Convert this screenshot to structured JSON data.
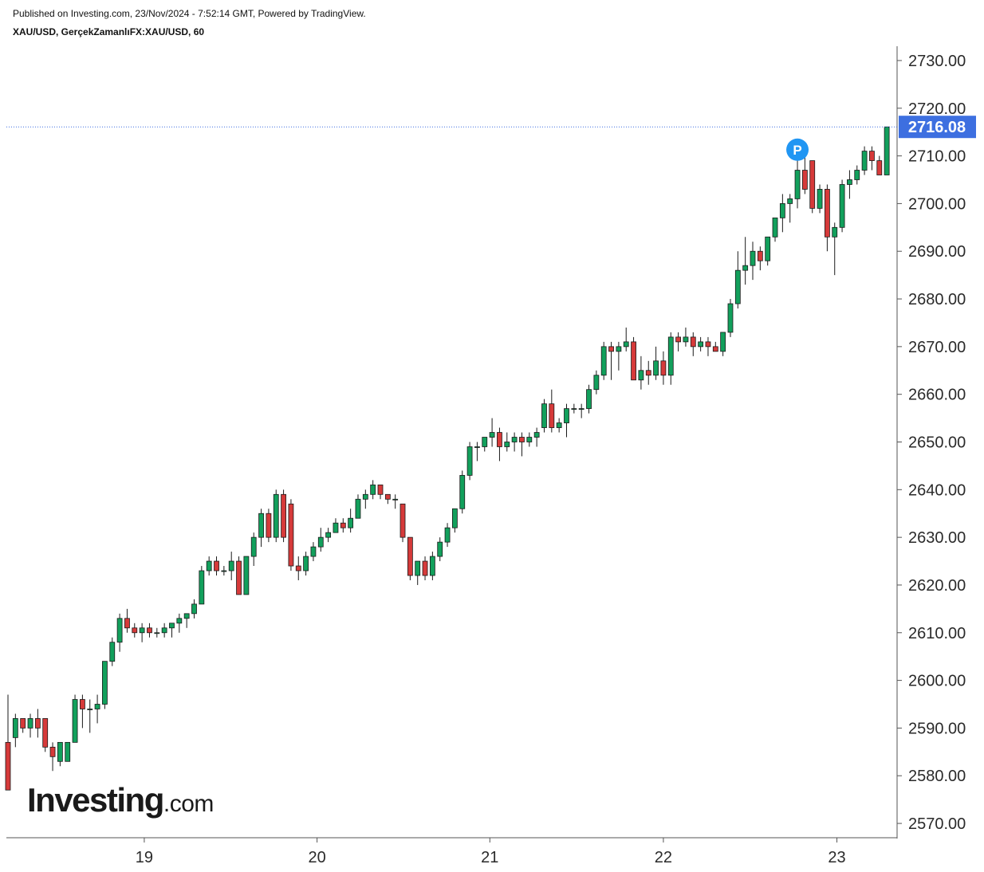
{
  "header": {
    "published": "Published on Investing.com, 23/Nov/2024 - 7:52:14 GMT, Powered by TradingView.",
    "symbol": "XAU/USD, GerçekZamanlıFX:XAU/USD, 60"
  },
  "logo": {
    "main": "Investing",
    "suffix": ".com"
  },
  "marker": {
    "label": "P",
    "color": "#2196f3"
  },
  "colors": {
    "up": "#12a05c",
    "down": "#d63a3a",
    "last_price": "#3d6fe0",
    "axis": "#555555"
  },
  "chart_data": {
    "type": "candlestick",
    "title": "",
    "xlabel": "",
    "ylabel": "",
    "ylim": [
      2567,
      2733
    ],
    "yticks": [
      "2570.00",
      "2580.00",
      "2590.00",
      "2600.00",
      "2610.00",
      "2620.00",
      "2630.00",
      "2640.00",
      "2650.00",
      "2660.00",
      "2670.00",
      "2680.00",
      "2690.00",
      "2700.00",
      "2710.00",
      "2720.00",
      "2730.00"
    ],
    "xtick_labels": [
      {
        "label": "19",
        "index": 18.3
      },
      {
        "label": "20",
        "index": 41.5
      },
      {
        "label": "21",
        "index": 64.7
      },
      {
        "label": "22",
        "index": 88
      },
      {
        "label": "23",
        "index": 111.3
      }
    ],
    "last_price": "2716.08",
    "candles": [
      [
        2587,
        2597,
        2577,
        2577
      ],
      [
        2588,
        2593,
        2586,
        2592
      ],
      [
        2592,
        2592,
        2589,
        2590
      ],
      [
        2590,
        2593,
        2588,
        2592
      ],
      [
        2592,
        2594,
        2588,
        2590
      ],
      [
        2592,
        2592,
        2585,
        2586
      ],
      [
        2586,
        2587,
        2581,
        2584
      ],
      [
        2583,
        2587,
        2582,
        2587
      ],
      [
        2583,
        2587,
        2583,
        2587
      ],
      [
        2587,
        2597,
        2587,
        2596
      ],
      [
        2596,
        2597,
        2590,
        2594
      ],
      [
        2594,
        2596,
        2589,
        2594
      ],
      [
        2594,
        2597,
        2591,
        2595
      ],
      [
        2595,
        2604,
        2594,
        2604
      ],
      [
        2604,
        2609,
        2603,
        2608
      ],
      [
        2608,
        2614,
        2606,
        2613
      ],
      [
        2613,
        2615,
        2610,
        2611
      ],
      [
        2611,
        2612,
        2609,
        2610
      ],
      [
        2610,
        2612,
        2608,
        2611
      ],
      [
        2611,
        2612,
        2609,
        2610
      ],
      [
        2610,
        2611,
        2609,
        2610
      ],
      [
        2610,
        2612,
        2609,
        2611
      ],
      [
        2611,
        2612,
        2609,
        2612
      ],
      [
        2612,
        2614,
        2610,
        2613
      ],
      [
        2613,
        2614,
        2611,
        2614
      ],
      [
        2614,
        2617,
        2613,
        2616
      ],
      [
        2616,
        2624,
        2616,
        2623
      ],
      [
        2623,
        2626,
        2622,
        2625
      ],
      [
        2625,
        2626,
        2622,
        2623
      ],
      [
        2623,
        2624,
        2622,
        2623
      ],
      [
        2623,
        2627,
        2621,
        2625
      ],
      [
        2625,
        2626,
        2618,
        2618
      ],
      [
        2618,
        2626,
        2618,
        2626
      ],
      [
        2626,
        2631,
        2624,
        2630
      ],
      [
        2630,
        2636,
        2628,
        2635
      ],
      [
        2635,
        2636,
        2629,
        2630
      ],
      [
        2630,
        2640,
        2629,
        2639
      ],
      [
        2639,
        2640,
        2629,
        2630
      ],
      [
        2637,
        2638,
        2623,
        2624
      ],
      [
        2624,
        2626,
        2621,
        2623
      ],
      [
        2623,
        2627,
        2622,
        2626
      ],
      [
        2626,
        2629,
        2625,
        2628
      ],
      [
        2628,
        2632,
        2627,
        2630
      ],
      [
        2630,
        2632,
        2629,
        2631
      ],
      [
        2631,
        2634,
        2631,
        2633
      ],
      [
        2633,
        2634,
        2631,
        2632
      ],
      [
        2632,
        2636,
        2631,
        2634
      ],
      [
        2634,
        2639,
        2634,
        2638
      ],
      [
        2638,
        2640,
        2636,
        2639
      ],
      [
        2639,
        2642,
        2638,
        2641
      ],
      [
        2641,
        2641,
        2638,
        2639
      ],
      [
        2639,
        2639,
        2637,
        2638
      ],
      [
        2638,
        2639,
        2636,
        2638
      ],
      [
        2637,
        2637,
        2629,
        2630
      ],
      [
        2630,
        2630,
        2621,
        2622
      ],
      [
        2622,
        2625,
        2620,
        2625
      ],
      [
        2625,
        2626,
        2621,
        2622
      ],
      [
        2622,
        2627,
        2621,
        2626
      ],
      [
        2626,
        2630,
        2625,
        2629
      ],
      [
        2629,
        2633,
        2628,
        2632
      ],
      [
        2632,
        2636,
        2631,
        2636
      ],
      [
        2636,
        2644,
        2635,
        2643
      ],
      [
        2643,
        2650,
        2642,
        2649
      ],
      [
        2649,
        2650,
        2646,
        2649
      ],
      [
        2649,
        2651,
        2648,
        2651
      ],
      [
        2651,
        2655,
        2649,
        2652
      ],
      [
        2652,
        2653,
        2646,
        2649
      ],
      [
        2649,
        2652,
        2648,
        2650
      ],
      [
        2650,
        2652,
        2648,
        2651
      ],
      [
        2651,
        2652,
        2647,
        2650
      ],
      [
        2650,
        2652,
        2649,
        2651
      ],
      [
        2651,
        2653,
        2649,
        2652
      ],
      [
        2653,
        2659,
        2652,
        2658
      ],
      [
        2658,
        2661,
        2652,
        2653
      ],
      [
        2653,
        2655,
        2652,
        2654
      ],
      [
        2654,
        2658,
        2651,
        2657
      ],
      [
        2657,
        2658,
        2656,
        2657
      ],
      [
        2657,
        2658,
        2655,
        2657
      ],
      [
        2657,
        2662,
        2656,
        2661
      ],
      [
        2661,
        2665,
        2660,
        2664
      ],
      [
        2664,
        2671,
        2663,
        2670
      ],
      [
        2670,
        2671,
        2663,
        2669
      ],
      [
        2669,
        2671,
        2665,
        2670
      ],
      [
        2670,
        2674,
        2669,
        2671
      ],
      [
        2671,
        2672,
        2663,
        2663
      ],
      [
        2663,
        2668,
        2661,
        2665
      ],
      [
        2665,
        2667,
        2662,
        2664
      ],
      [
        2664,
        2670,
        2663,
        2667
      ],
      [
        2667,
        2669,
        2662,
        2664
      ],
      [
        2664,
        2673,
        2662,
        2672
      ],
      [
        2672,
        2673,
        2669,
        2671
      ],
      [
        2671,
        2674,
        2670,
        2672
      ],
      [
        2672,
        2673,
        2668,
        2670
      ],
      [
        2670,
        2672,
        2669,
        2671
      ],
      [
        2671,
        2672,
        2668,
        2670
      ],
      [
        2670,
        2671,
        2669,
        2669
      ],
      [
        2669,
        2673,
        2668,
        2673
      ],
      [
        2673,
        2680,
        2672,
        2679
      ],
      [
        2679,
        2690,
        2678,
        2686
      ],
      [
        2686,
        2693,
        2683,
        2687
      ],
      [
        2687,
        2692,
        2684,
        2690
      ],
      [
        2690,
        2691,
        2686,
        2688
      ],
      [
        2688,
        2693,
        2687,
        2693
      ],
      [
        2693,
        2697,
        2692,
        2697
      ],
      [
        2697,
        2702,
        2694,
        2700
      ],
      [
        2700,
        2702,
        2696,
        2701
      ],
      [
        2701,
        2710,
        2699,
        2707
      ],
      [
        2707,
        2710,
        2702,
        2703
      ],
      [
        2709,
        2709,
        2698,
        2699
      ],
      [
        2699,
        2704,
        2698,
        2703
      ],
      [
        2703,
        2704,
        2690,
        2693
      ],
      [
        2693,
        2696,
        2685,
        2695
      ],
      [
        2695,
        2705,
        2694,
        2704
      ],
      [
        2704,
        2707,
        2701,
        2705
      ],
      [
        2705,
        2708,
        2704,
        2707
      ],
      [
        2707,
        2712,
        2706,
        2711
      ],
      [
        2711,
        2712,
        2707,
        2709
      ],
      [
        2709,
        2710,
        2706,
        2706
      ],
      [
        2706,
        2716.08,
        2706,
        2716.08
      ]
    ]
  }
}
